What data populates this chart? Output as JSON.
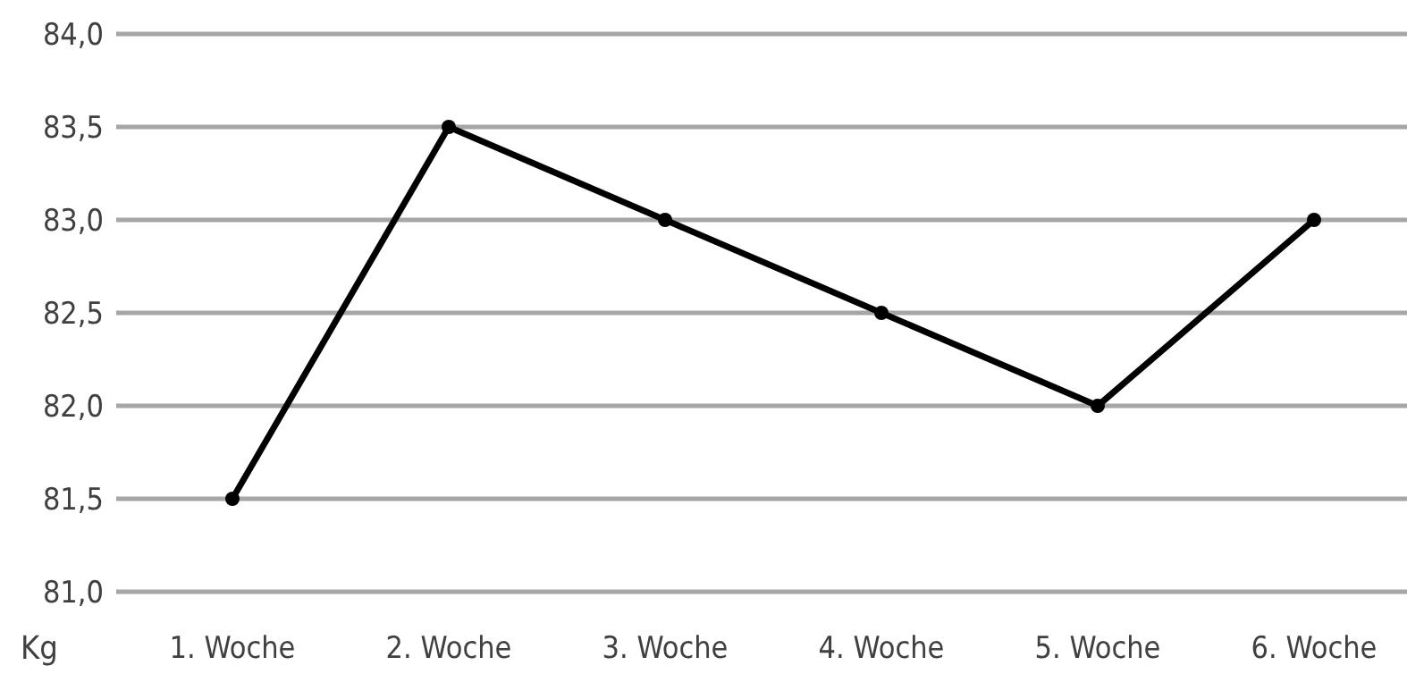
{
  "chart_data": {
    "type": "line",
    "ylabel": "Kg",
    "categories": [
      "1. Woche",
      "2. Woche",
      "3. Woche",
      "4. Woche",
      "5. Woche",
      "6. Woche"
    ],
    "series": [
      {
        "color": "#000000",
        "values": [
          81.5,
          83.5,
          83.0,
          82.5,
          82.0,
          83.0
        ]
      }
    ],
    "ylim": [
      81,
      84
    ],
    "yticks": [
      {
        "value": 81,
        "label": "81,0"
      },
      {
        "value": 81.5,
        "label": "81,5"
      },
      {
        "value": 82,
        "label": "82,0"
      },
      {
        "value": 82.5,
        "label": "82,5"
      },
      {
        "value": 83,
        "label": "83,0"
      },
      {
        "value": 83.5,
        "label": "83,5"
      },
      {
        "value": 84,
        "label": "84,0"
      }
    ],
    "grid": "y",
    "marker": "circle",
    "line_style": "solid"
  }
}
